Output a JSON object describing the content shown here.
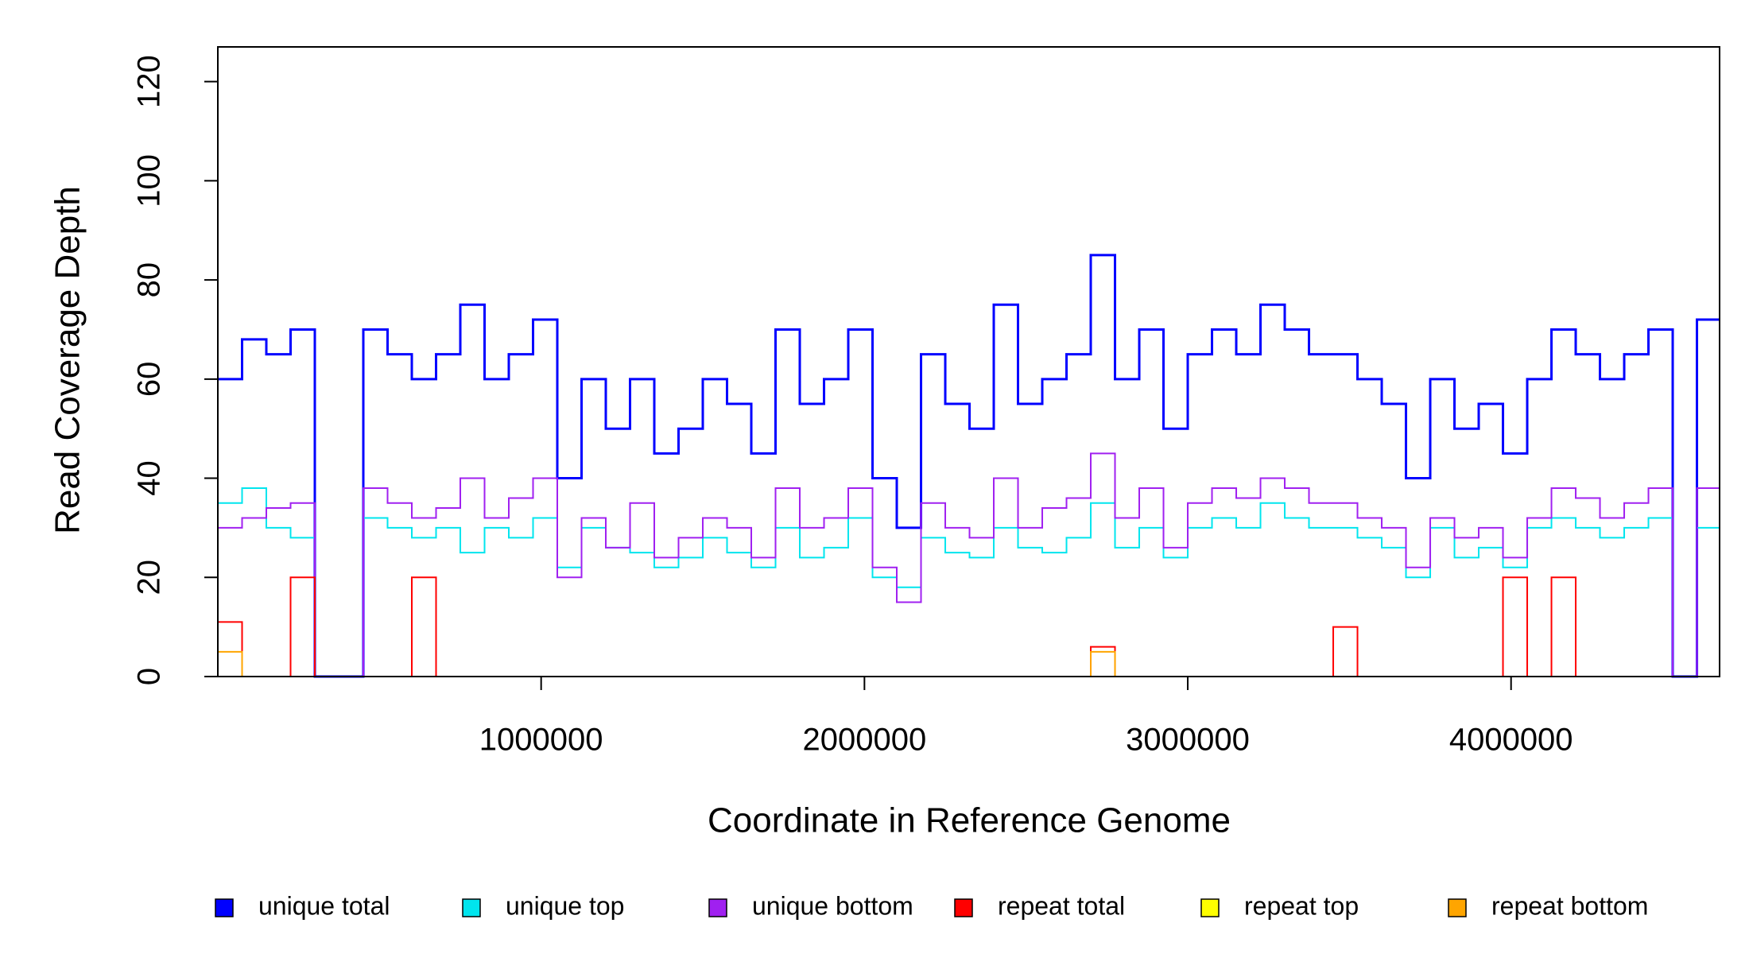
{
  "chart_data": {
    "type": "step",
    "xlabel": "Coordinate in Reference Genome",
    "ylabel": "Read Coverage Depth",
    "xlim": [
      0,
      4645000
    ],
    "ylim": [
      0,
      127
    ],
    "xticks": [
      1000000,
      2000000,
      3000000,
      4000000
    ],
    "yticks": [
      0,
      20,
      40,
      60,
      80,
      100,
      120
    ],
    "legend": "bottom",
    "x": [
      0,
      75000,
      150000,
      225000,
      300000,
      375000,
      450000,
      525000,
      600000,
      675000,
      750000,
      825000,
      900000,
      975000,
      1050000,
      1125000,
      1200000,
      1275000,
      1350000,
      1425000,
      1500000,
      1575000,
      1650000,
      1725000,
      1800000,
      1875000,
      1950000,
      2025000,
      2100000,
      2175000,
      2250000,
      2325000,
      2400000,
      2475000,
      2550000,
      2625000,
      2700000,
      2775000,
      2850000,
      2925000,
      3000000,
      3075000,
      3150000,
      3225000,
      3300000,
      3375000,
      3450000,
      3525000,
      3600000,
      3675000,
      3750000,
      3825000,
      3900000,
      3975000,
      4050000,
      4125000,
      4200000,
      4275000,
      4350000,
      4425000,
      4500000,
      4575000
    ],
    "series": [
      {
        "name": "unique total",
        "color": "#0000ff",
        "values": [
          60,
          68,
          65,
          70,
          0,
          0,
          70,
          65,
          60,
          65,
          75,
          60,
          65,
          72,
          40,
          60,
          50,
          60,
          45,
          50,
          60,
          55,
          45,
          70,
          55,
          60,
          70,
          40,
          30,
          65,
          55,
          50,
          75,
          55,
          60,
          65,
          85,
          60,
          70,
          50,
          65,
          70,
          65,
          75,
          70,
          65,
          65,
          60,
          55,
          40,
          60,
          50,
          55,
          45,
          60,
          70,
          65,
          60,
          65,
          70,
          0,
          72
        ]
      },
      {
        "name": "unique top",
        "color": "#00e5ee",
        "values": [
          35,
          38,
          30,
          28,
          0,
          0,
          32,
          30,
          28,
          30,
          25,
          30,
          28,
          32,
          22,
          30,
          26,
          25,
          22,
          24,
          28,
          25,
          22,
          30,
          24,
          26,
          32,
          20,
          18,
          28,
          25,
          24,
          30,
          26,
          25,
          28,
          35,
          26,
          30,
          24,
          30,
          32,
          30,
          35,
          32,
          30,
          30,
          28,
          26,
          20,
          30,
          24,
          26,
          22,
          30,
          32,
          30,
          28,
          30,
          32,
          0,
          30
        ]
      },
      {
        "name": "unique bottom",
        "color": "#a020f0",
        "values": [
          30,
          32,
          34,
          35,
          0,
          0,
          38,
          35,
          32,
          34,
          40,
          32,
          36,
          40,
          20,
          32,
          26,
          35,
          24,
          28,
          32,
          30,
          24,
          38,
          30,
          32,
          38,
          22,
          15,
          35,
          30,
          28,
          40,
          30,
          34,
          36,
          45,
          32,
          38,
          26,
          35,
          38,
          36,
          40,
          38,
          35,
          35,
          32,
          30,
          22,
          32,
          28,
          30,
          24,
          32,
          38,
          36,
          32,
          35,
          38,
          0,
          38
        ]
      },
      {
        "name": "repeat total",
        "color": "#ff0000",
        "values": [
          11,
          0,
          0,
          20,
          0,
          0,
          0,
          0,
          20,
          0,
          0,
          0,
          0,
          0,
          0,
          0,
          0,
          0,
          0,
          0,
          0,
          0,
          0,
          0,
          0,
          0,
          0,
          0,
          0,
          0,
          0,
          0,
          0,
          0,
          0,
          0,
          6,
          0,
          0,
          0,
          0,
          0,
          0,
          0,
          0,
          0,
          10,
          0,
          0,
          0,
          0,
          0,
          0,
          20,
          0,
          20,
          0,
          0,
          0,
          0,
          0,
          0
        ]
      },
      {
        "name": "repeat top",
        "color": "#ffff00",
        "values": [
          0,
          0,
          0,
          0,
          0,
          0,
          0,
          0,
          0,
          0,
          0,
          0,
          0,
          0,
          0,
          0,
          0,
          0,
          0,
          0,
          0,
          0,
          0,
          0,
          0,
          0,
          0,
          0,
          0,
          0,
          0,
          0,
          0,
          0,
          0,
          0,
          0,
          0,
          0,
          0,
          0,
          0,
          0,
          0,
          0,
          0,
          0,
          0,
          0,
          0,
          0,
          0,
          0,
          0,
          0,
          0,
          0,
          0,
          0,
          0,
          0,
          0
        ]
      },
      {
        "name": "repeat bottom",
        "color": "#ffa500",
        "values": [
          5,
          0,
          0,
          0,
          0,
          0,
          0,
          0,
          0,
          0,
          0,
          0,
          0,
          0,
          0,
          0,
          0,
          0,
          0,
          0,
          0,
          0,
          0,
          0,
          0,
          0,
          0,
          0,
          0,
          0,
          0,
          0,
          0,
          0,
          0,
          0,
          5,
          0,
          0,
          0,
          0,
          0,
          0,
          0,
          0,
          0,
          0,
          0,
          0,
          0,
          0,
          0,
          0,
          0,
          0,
          0,
          0,
          0,
          0,
          0,
          0,
          0
        ]
      }
    ]
  }
}
